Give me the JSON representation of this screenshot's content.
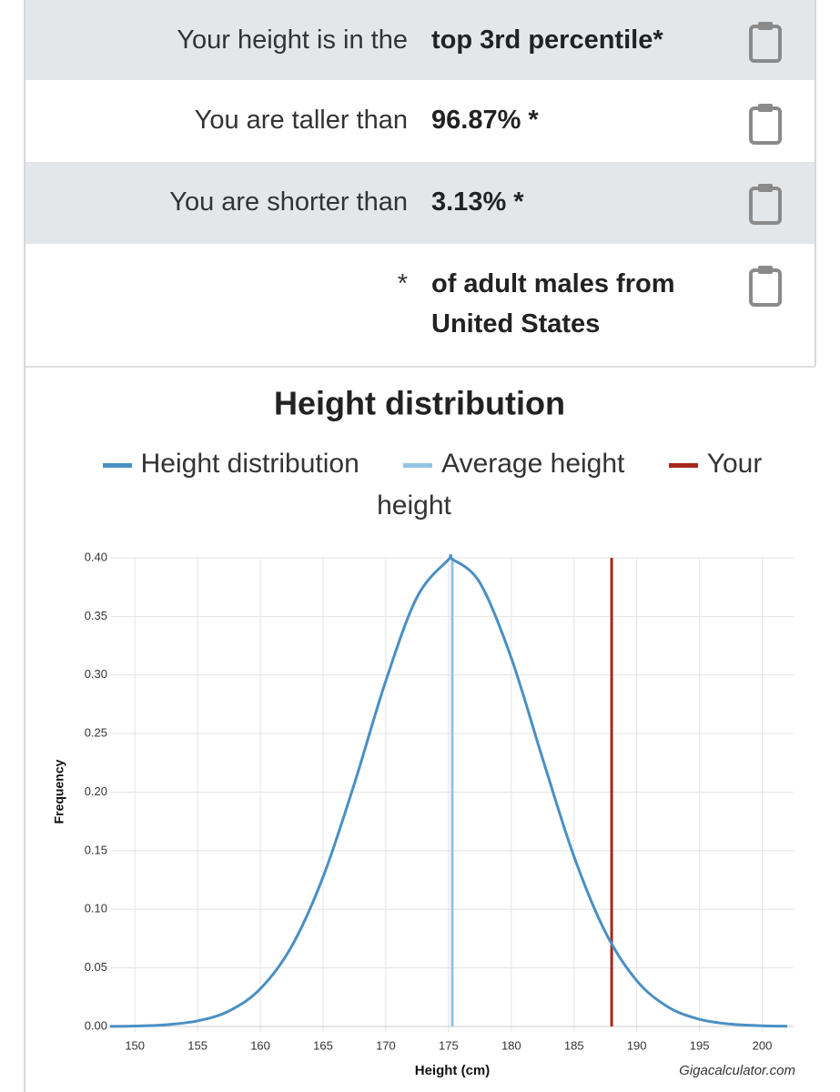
{
  "table": {
    "rows": [
      [
        "Your height is in the",
        "top 3rd percentile*"
      ],
      [
        "You are taller than",
        "96.87% *"
      ],
      [
        "You are shorter than",
        "3.13% *"
      ],
      [
        "*",
        "of adult males from United States"
      ]
    ]
  },
  "chart_data": {
    "type": "line",
    "title": "Height distribution",
    "x_label": "Height (cm)",
    "y_label": "Frequency",
    "credit": "Gigacalculator.com",
    "series": [
      {
        "name": "Height distribution",
        "color": "#4a8fc4",
        "x": [
          148,
          150,
          152.5,
          155,
          157.5,
          160,
          162.5,
          165,
          167.5,
          170,
          172.5,
          175,
          175.3,
          177.5,
          180,
          182.5,
          185,
          187.5,
          190,
          192.5,
          195,
          197.5,
          200,
          202
        ],
        "values": [
          0.0001,
          0.0004,
          0.0015,
          0.0048,
          0.0132,
          0.0322,
          0.0685,
          0.1276,
          0.2074,
          0.295,
          0.3667,
          0.3985,
          0.3989,
          0.3787,
          0.3146,
          0.2285,
          0.1451,
          0.0805,
          0.0391,
          0.0166,
          0.0062,
          0.002,
          0.0006,
          0.0002
        ]
      },
      {
        "name": "Average height",
        "color": "#93c4e3",
        "x": [
          175.3,
          175.3
        ],
        "values": [
          0,
          0.4
        ]
      },
      {
        "name": "Your height",
        "color": "#a5281b",
        "x": [
          188,
          188
        ],
        "values": [
          0,
          0.4
        ]
      }
    ],
    "xlim": [
      148.1,
      202.5
    ],
    "xticks": [
      150,
      155,
      160,
      165,
      170,
      175,
      180,
      185,
      190,
      195,
      200
    ],
    "ylim": [
      0,
      0.4
    ],
    "yticks": [
      {
        "value": 0,
        "label": "0.00"
      },
      {
        "value": 0.05,
        "label": "0.05"
      },
      {
        "value": 0.1,
        "label": "0.10"
      },
      {
        "value": 0.15,
        "label": "0.15"
      },
      {
        "value": 0.2,
        "label": "0.20"
      },
      {
        "value": 0.25,
        "label": "0.25"
      },
      {
        "value": 0.3,
        "label": "0.30"
      },
      {
        "value": 0.35,
        "label": "0.35"
      },
      {
        "value": 0.4,
        "label": "0.40"
      }
    ],
    "grid": true
  }
}
